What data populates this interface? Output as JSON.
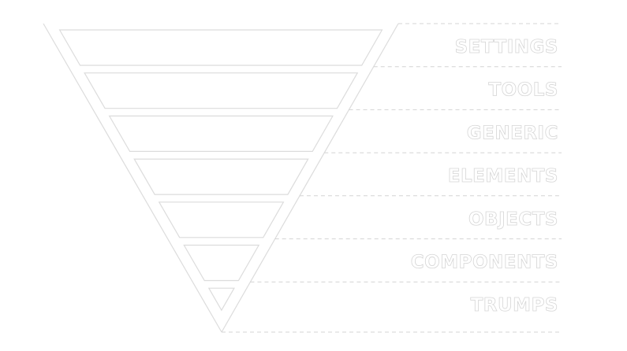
{
  "diagram": {
    "type": "inverted-triangle-layers",
    "title": "",
    "colors": {
      "background": "#ffffff",
      "outline": "#dcdcdc",
      "dashed_line": "#d4d4d4",
      "label_stroke": "#d6d6d6"
    },
    "layers": [
      {
        "label": "SETTINGS"
      },
      {
        "label": "TOOLS"
      },
      {
        "label": "GENERIC"
      },
      {
        "label": "ELEMENTS"
      },
      {
        "label": "OBJECTS"
      },
      {
        "label": "COMPONENTS"
      },
      {
        "label": "TRUMPS"
      }
    ]
  }
}
